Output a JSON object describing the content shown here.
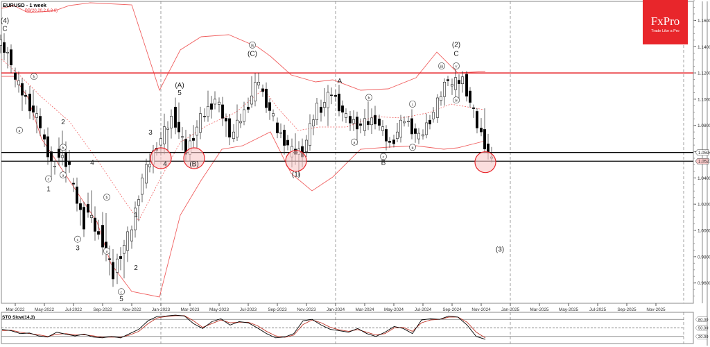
{
  "chart_data": {
    "type": "candlestick",
    "title": "EURUSD - 1 week",
    "symbol": "EURUSD",
    "timeframe": "1 week",
    "indicator_main": "BB(20,20,2.0,2.0)",
    "indicator_sub": "STO Slow(14,3)",
    "price_axis": {
      "ticks": [
        1.16,
        1.14,
        1.12,
        1.1,
        1.08,
        1.06,
        1.04,
        1.02,
        1.0,
        0.98,
        0.96
      ],
      "tick_labels": [
        "1.16000",
        "1.14000",
        "1.12000",
        "1.10000",
        "1.08000",
        "1.04000",
        "1.02000",
        "1.00000",
        "0.98000",
        "0.96000"
      ],
      "ylim": [
        0.945,
        1.175
      ]
    },
    "time_axis": {
      "labels": [
        "Mar-2022",
        "May-2022",
        "Jul-2022",
        "Sep-2022",
        "Nov-2022",
        "Jan-2023",
        "Mar-2023",
        "May-2023",
        "Jul-2023",
        "Sep-2023",
        "Nov-2023",
        "Jan-2024",
        "Mar-2024",
        "May-2024",
        "Jul-2024",
        "Sep-2024",
        "Nov-2024",
        "Jan-2025",
        "Mar-2025",
        "May-2025",
        "Jul-2025",
        "Sep-2025",
        "Nov-2025"
      ]
    },
    "horizontal_lines": [
      {
        "value": 1.12,
        "color": "#e8262b",
        "label": ""
      },
      {
        "value": 1.05941,
        "color": "#000000",
        "label": "1.05941"
      },
      {
        "value": 1.05274,
        "color": "#000000",
        "label": "1.05274",
        "current": true
      }
    ],
    "wave_labels": [
      {
        "text": "(4)",
        "date": "Feb-2022",
        "price": 1.158
      },
      {
        "text": "C",
        "date": "Feb-2022",
        "price": 1.152
      },
      {
        "text": "b",
        "date": "Apr-2022",
        "price": 1.116,
        "circled": true
      },
      {
        "text": "a",
        "date": "Mar-2022",
        "price": 1.075,
        "circled": true
      },
      {
        "text": "2",
        "date": "Jun-2022",
        "price": 1.081
      },
      {
        "text": "b",
        "date": "Jun-2022",
        "price": 1.062,
        "circled": true
      },
      {
        "text": "c",
        "date": "May-2022",
        "price": 1.038,
        "circled": true
      },
      {
        "text": "a",
        "date": "Jun-2022",
        "price": 1.041,
        "circled": true
      },
      {
        "text": "1",
        "date": "May-2022",
        "price": 1.03
      },
      {
        "text": "4",
        "date": "Aug-2022",
        "price": 1.05
      },
      {
        "text": "b",
        "date": "Sep-2022",
        "price": 1.024,
        "circled": true
      },
      {
        "text": "c",
        "date": "Jul-2022",
        "price": 0.992,
        "circled": true
      },
      {
        "text": "3",
        "date": "Jul-2022",
        "price": 0.985
      },
      {
        "text": "a",
        "date": "Sep-2022",
        "price": 0.983,
        "circled": true
      },
      {
        "text": "1",
        "date": "Nov-2022",
        "price": 1.01
      },
      {
        "text": "2",
        "date": "Nov-2022",
        "price": 0.97
      },
      {
        "text": "c",
        "date": "Oct-2022",
        "price": 0.952,
        "circled": true
      },
      {
        "text": "5",
        "date": "Oct-2022",
        "price": 0.946
      },
      {
        "text": "3",
        "date": "Dec-2022",
        "price": 1.073
      },
      {
        "text": "4",
        "date": "Jan-2023",
        "price": 1.049
      },
      {
        "text": "(A)",
        "date": "Feb-2023",
        "price": 1.109
      },
      {
        "text": "5",
        "date": "Feb-2023",
        "price": 1.103
      },
      {
        "text": "(B)",
        "date": "Mar-2023",
        "price": 1.049
      },
      {
        "text": "B",
        "date": "Jul-2023",
        "price": 1.14,
        "circled": true
      },
      {
        "text": "(C)",
        "date": "Jul-2023",
        "price": 1.133
      },
      {
        "text": "(1)",
        "date": "Oct-2023",
        "price": 1.041
      },
      {
        "text": "A",
        "date": "Jan-2024",
        "price": 1.112
      },
      {
        "text": "b",
        "date": "Mar-2024",
        "price": 1.1,
        "circled": true
      },
      {
        "text": "a",
        "date": "Feb-2024",
        "price": 1.066,
        "circled": true
      },
      {
        "text": "c",
        "date": "Apr-2024",
        "price": 1.055,
        "circled": true
      },
      {
        "text": "B",
        "date": "Apr-2024",
        "price": 1.05
      },
      {
        "text": "i",
        "date": "Jun-2024",
        "price": 1.095,
        "circled": true
      },
      {
        "text": "ii",
        "date": "Jun-2024",
        "price": 1.062,
        "circled": true
      },
      {
        "text": "iii",
        "date": "Aug-2024",
        "price": 1.124,
        "circled": true
      },
      {
        "text": "iv",
        "date": "Sep-2024",
        "price": 1.098,
        "circled": true
      },
      {
        "text": "v",
        "date": "Sep-2024",
        "price": 1.124,
        "circled": true
      },
      {
        "text": "(2)",
        "date": "Sep-2024",
        "price": 1.14
      },
      {
        "text": "C",
        "date": "Sep-2024",
        "price": 1.133
      },
      {
        "text": "(3)",
        "date": "Dec-2024",
        "price": 0.984
      }
    ],
    "highlight_circles": [
      {
        "date": "Jan-2023",
        "price": 1.055
      },
      {
        "date": "Mar-2023",
        "price": 1.055
      },
      {
        "date": "Oct-2023",
        "price": 1.053
      },
      {
        "date": "Nov-2024",
        "price": 1.052
      }
    ],
    "candles_approx": [
      {
        "d": "Feb-2022",
        "o": 1.145,
        "h": 1.15,
        "l": 1.12,
        "c": 1.13
      },
      {
        "d": "Mar-2022",
        "o": 1.12,
        "h": 1.125,
        "l": 1.09,
        "c": 1.1
      },
      {
        "d": "Apr-2022",
        "o": 1.1,
        "h": 1.11,
        "l": 1.07,
        "c": 1.08
      },
      {
        "d": "May-2022",
        "o": 1.075,
        "h": 1.08,
        "l": 1.035,
        "c": 1.045
      },
      {
        "d": "Jun-2022",
        "o": 1.06,
        "h": 1.077,
        "l": 1.04,
        "c": 1.05
      },
      {
        "d": "Jul-2022",
        "o": 1.04,
        "h": 1.045,
        "l": 0.995,
        "c": 1.005
      },
      {
        "d": "Aug-2022",
        "o": 1.02,
        "h": 1.037,
        "l": 0.99,
        "c": 0.995
      },
      {
        "d": "Sep-2022",
        "o": 1.0,
        "h": 1.02,
        "l": 0.955,
        "c": 0.965
      },
      {
        "d": "Oct-2022",
        "o": 0.97,
        "h": 1.0,
        "l": 0.953,
        "c": 0.995
      },
      {
        "d": "Nov-2022",
        "o": 0.99,
        "h": 1.043,
        "l": 0.98,
        "c": 1.04
      },
      {
        "d": "Dec-2022",
        "o": 1.04,
        "h": 1.071,
        "l": 1.035,
        "c": 1.065
      },
      {
        "d": "Jan-2023",
        "o": 1.065,
        "h": 1.093,
        "l": 1.05,
        "c": 1.085
      },
      {
        "d": "Feb-2023",
        "o": 1.09,
        "h": 1.103,
        "l": 1.052,
        "c": 1.06
      },
      {
        "d": "Mar-2023",
        "o": 1.06,
        "h": 1.093,
        "l": 1.052,
        "c": 1.085
      },
      {
        "d": "Apr-2023",
        "o": 1.085,
        "h": 1.11,
        "l": 1.08,
        "c": 1.1
      },
      {
        "d": "May-2023",
        "o": 1.1,
        "h": 1.104,
        "l": 1.065,
        "c": 1.075
      },
      {
        "d": "Jun-2023",
        "o": 1.07,
        "h": 1.1,
        "l": 1.068,
        "c": 1.09
      },
      {
        "d": "Jul-2023",
        "o": 1.09,
        "h": 1.128,
        "l": 1.088,
        "c": 1.115
      },
      {
        "d": "Aug-2023",
        "o": 1.11,
        "h": 1.113,
        "l": 1.08,
        "c": 1.085
      },
      {
        "d": "Sep-2023",
        "o": 1.08,
        "h": 1.085,
        "l": 1.06,
        "c": 1.065
      },
      {
        "d": "Oct-2023",
        "o": 1.06,
        "h": 1.07,
        "l": 1.045,
        "c": 1.06
      },
      {
        "d": "Nov-2023",
        "o": 1.06,
        "h": 1.1,
        "l": 1.055,
        "c": 1.095
      },
      {
        "d": "Dec-2023",
        "o": 1.09,
        "h": 1.114,
        "l": 1.078,
        "c": 1.105
      },
      {
        "d": "Jan-2024",
        "o": 1.105,
        "h": 1.11,
        "l": 1.08,
        "c": 1.085
      },
      {
        "d": "Feb-2024",
        "o": 1.085,
        "h": 1.09,
        "l": 1.07,
        "c": 1.08
      },
      {
        "d": "Mar-2024",
        "o": 1.08,
        "h": 1.098,
        "l": 1.075,
        "c": 1.085
      },
      {
        "d": "Apr-2024",
        "o": 1.085,
        "h": 1.088,
        "l": 1.06,
        "c": 1.065
      },
      {
        "d": "May-2024",
        "o": 1.065,
        "h": 1.09,
        "l": 1.063,
        "c": 1.085
      },
      {
        "d": "Jun-2024",
        "o": 1.085,
        "h": 1.09,
        "l": 1.065,
        "c": 1.07
      },
      {
        "d": "Jul-2024",
        "o": 1.07,
        "h": 1.095,
        "l": 1.068,
        "c": 1.09
      },
      {
        "d": "Aug-2024",
        "o": 1.09,
        "h": 1.12,
        "l": 1.085,
        "c": 1.118
      },
      {
        "d": "Sep-2024",
        "o": 1.11,
        "h": 1.121,
        "l": 1.098,
        "c": 1.115
      },
      {
        "d": "Oct-2024",
        "o": 1.115,
        "h": 1.116,
        "l": 1.075,
        "c": 1.08
      },
      {
        "d": "Nov-2024",
        "o": 1.08,
        "h": 1.094,
        "l": 1.049,
        "c": 1.052
      }
    ],
    "stochastic": {
      "levels": [
        80,
        50,
        20
      ],
      "level_labels": [
        "80.00",
        "50.00",
        "20.00"
      ],
      "k_approx": [
        45,
        40,
        30,
        32,
        22,
        18,
        35,
        28,
        22,
        28,
        18,
        15,
        20,
        15,
        30,
        45,
        75,
        90,
        92,
        95,
        92,
        65,
        48,
        72,
        82,
        60,
        72,
        68,
        50,
        30,
        15,
        18,
        30,
        75,
        80,
        60,
        45,
        40,
        35,
        48,
        30,
        20,
        35,
        55,
        48,
        30,
        78,
        82,
        80,
        92,
        88,
        60,
        20,
        10
      ],
      "d_approx": [
        40,
        42,
        35,
        30,
        26,
        20,
        28,
        30,
        25,
        26,
        22,
        17,
        18,
        17,
        25,
        38,
        65,
        85,
        90,
        93,
        93,
        75,
        52,
        65,
        78,
        68,
        70,
        70,
        58,
        38,
        22,
        17,
        25,
        62,
        78,
        68,
        52,
        43,
        38,
        44,
        35,
        25,
        30,
        50,
        52,
        38,
        68,
        78,
        80,
        88,
        88,
        70,
        35,
        15
      ]
    }
  },
  "header": {
    "title": "EURUSD - 1 week",
    "bb_label": "BB(20,20,2.0,2.0)"
  },
  "logo": {
    "brand": "FxPro",
    "tagline": "Trade Like a Pro",
    "color": "#e8262b"
  },
  "subpanel": {
    "label": "STO Slow(14,3)"
  },
  "price_labels": {
    "resistance": "1.05941",
    "current": "1.05274"
  },
  "colors": {
    "bollinger": "#f06060",
    "resistance_line": "#e8262b",
    "support_line": "#000000",
    "circle_fill": "#f8c8c8",
    "stoch_k": "#000000",
    "stoch_d": "#c0392b"
  }
}
